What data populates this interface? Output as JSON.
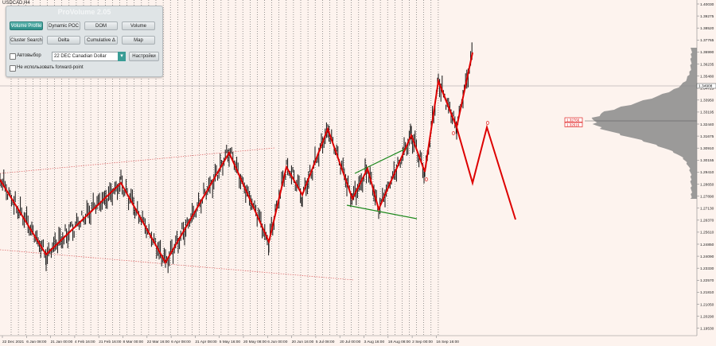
{
  "symbol_label": "USDCAD,H4",
  "panel": {
    "title": "ProVolume 2.05",
    "buttons": [
      {
        "label": "Volume Profile",
        "active": true
      },
      {
        "label": "Dynamic POC",
        "active": false
      },
      {
        "label": "DOM",
        "active": false
      },
      {
        "label": "Volume",
        "active": false
      },
      {
        "label": "Cluster Search",
        "active": false
      },
      {
        "label": "Delta",
        "active": false
      },
      {
        "label": "Cumulative Δ",
        "active": false
      },
      {
        "label": "Map",
        "active": false
      }
    ],
    "auto_select_label": "Автовыбор",
    "instrument_value": "22 DEC Canadian Dollar",
    "settings_label": "Настройки",
    "forward_point_label": "Не использовать forward-point"
  },
  "price_axis": {
    "labels": [
      "1.40030",
      "1.39275",
      "1.38520",
      "1.37765",
      "1.36990",
      "1.36235",
      "1.35480",
      "1.34725",
      "1.33950",
      "1.33195",
      "1.32440",
      "1.31675",
      "1.30910",
      "1.30155",
      "1.29410",
      "1.28650",
      "1.27890",
      "1.27130",
      "1.26370",
      "1.25610",
      "1.24850",
      "1.24090",
      "1.23330",
      "1.22570",
      "1.21810",
      "1.21050",
      "1.20290",
      "1.19530"
    ],
    "current_price": "1.34908"
  },
  "time_axis": {
    "labels": [
      "22 Dec 2021",
      "6 Jan 08:00",
      "21 Jan 00:00",
      "4 Feb 16:00",
      "21 Feb 16:00",
      "8 Mar 00:00",
      "22 Mar 16:00",
      "6 Apr 08:00",
      "21 Apr 08:00",
      "5 May 16:00",
      "20 May 08:00",
      "6 Jun 00:00",
      "20 Jun 16:00",
      "5 Jul 08:00",
      "20 Jul 00:00",
      "3 Aug 16:00",
      "18 Aug 08:00",
      "2 Sep 00:00",
      "16 Sep 16:00"
    ]
  },
  "profile_labels": [
    "1.32766",
    "1.32616"
  ],
  "forecast_markers": [
    "0",
    "0",
    "0"
  ],
  "colors": {
    "background": "#fdf3ee",
    "candles": "#111111",
    "zigzag": "#dd0000",
    "triangle": "#1e8a1e",
    "channel": "#e07070",
    "vlines": "#555555",
    "profile": "#8a8a8a",
    "accent": "#2e8f89"
  }
}
